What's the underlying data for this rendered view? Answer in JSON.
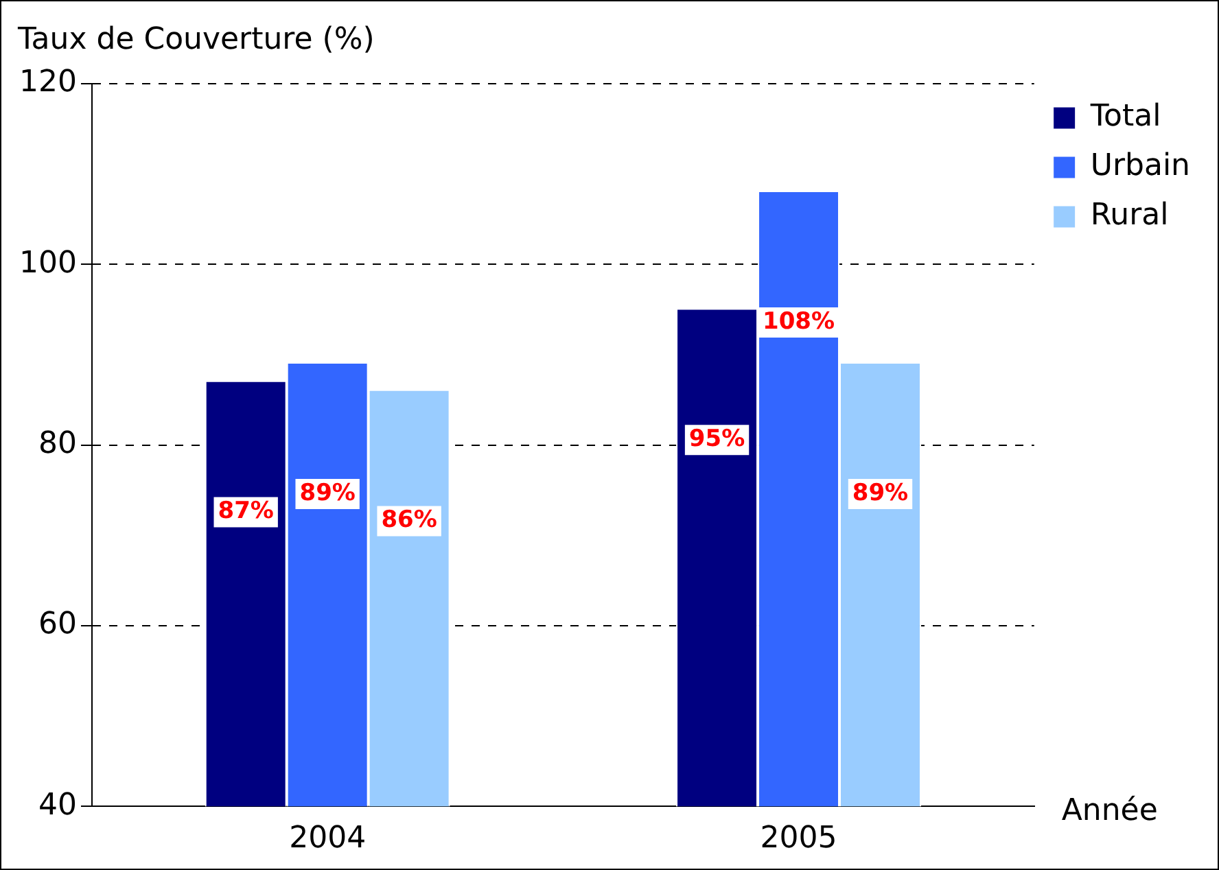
{
  "chart_data": {
    "type": "bar",
    "ylabel": "Taux de Couverture (%)",
    "xlabel": "Année",
    "categories": [
      "2004",
      "2005"
    ],
    "series": [
      {
        "name": "Total",
        "color": "#000080",
        "values": [
          87,
          95
        ],
        "value_labels": [
          "87%",
          "95%"
        ]
      },
      {
        "name": "Urbain",
        "color": "#3366ff",
        "values": [
          89,
          108
        ],
        "value_labels": [
          "89%",
          "108%"
        ]
      },
      {
        "name": "Rural",
        "color": "#99ccff",
        "values": [
          86,
          89
        ],
        "value_labels": [
          "86%",
          "89%"
        ]
      }
    ],
    "ylim": [
      40,
      120
    ],
    "yticks": [
      40,
      60,
      80,
      100,
      120
    ],
    "grid": "y",
    "legend": "top right"
  }
}
